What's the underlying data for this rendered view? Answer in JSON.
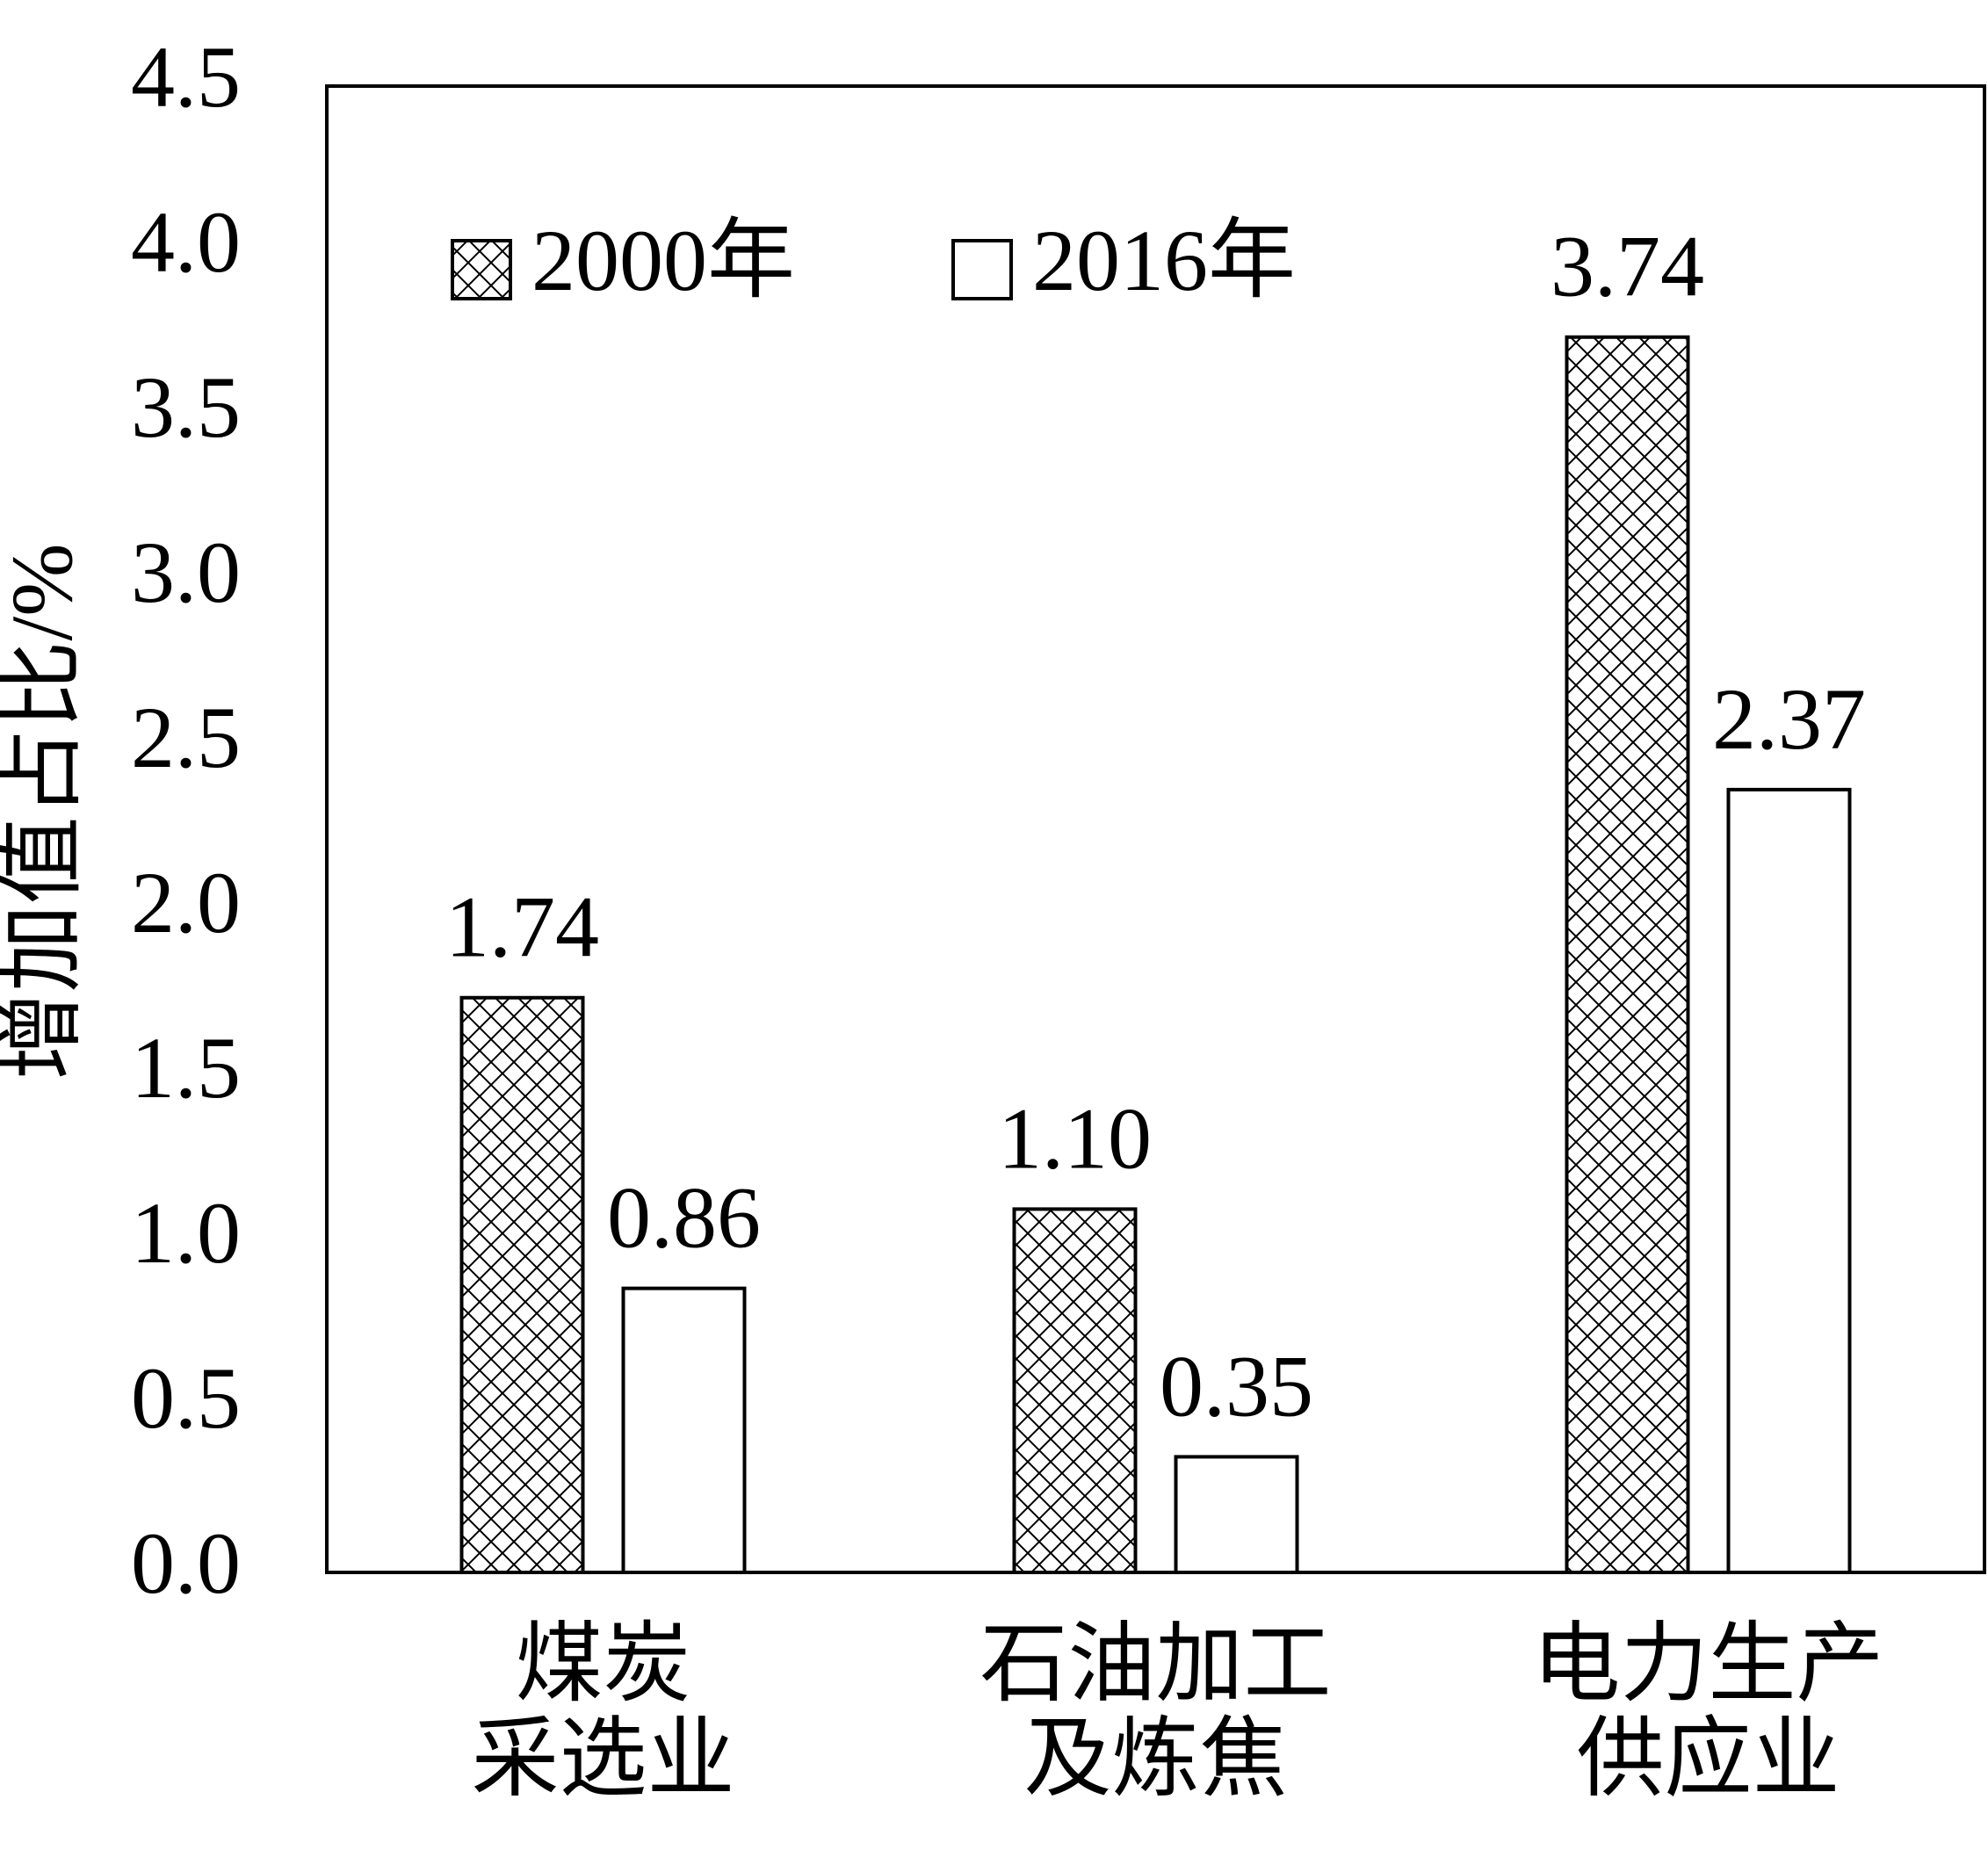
{
  "chart_data": {
    "type": "bar",
    "y_label": "增加值占比/%",
    "categories": [
      [
        "煤炭",
        "采选业"
      ],
      [
        "石油加工",
        "及炼焦"
      ],
      [
        "电力生产",
        "供应业"
      ]
    ],
    "series": [
      {
        "name": "2000年",
        "color": "#ffffff",
        "pattern": "crosshatch",
        "values": [
          1.74,
          1.1,
          3.74
        ],
        "value_labels": [
          "1.74",
          "1.10",
          "3.74"
        ]
      },
      {
        "name": "2016年",
        "color": "#ffffff",
        "values": [
          0.86,
          0.35,
          2.37
        ],
        "value_labels": [
          "0.86",
          "0.35",
          "2.37"
        ]
      }
    ],
    "ylim": [
      0,
      4.5
    ],
    "yticks": [
      {
        "value": 0,
        "label": "0.0"
      },
      0.5,
      {
        "value": 1,
        "label": "1.0"
      },
      1.5,
      {
        "value": 2,
        "label": "2.0"
      },
      2.5,
      {
        "value": 3,
        "label": "3.0"
      },
      3.5,
      {
        "value": 4,
        "label": "4.0"
      },
      4.5
    ],
    "grid": false
  }
}
